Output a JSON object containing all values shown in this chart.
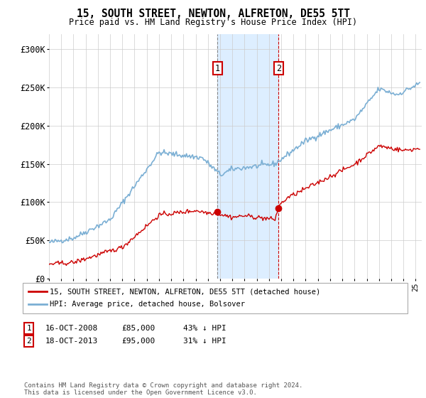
{
  "title": "15, SOUTH STREET, NEWTON, ALFRETON, DE55 5TT",
  "subtitle": "Price paid vs. HM Land Registry's House Price Index (HPI)",
  "ylabel_ticks": [
    "£0",
    "£50K",
    "£100K",
    "£150K",
    "£200K",
    "£250K",
    "£300K"
  ],
  "ytick_values": [
    0,
    50000,
    100000,
    150000,
    200000,
    250000,
    300000
  ],
  "ylim": [
    0,
    320000
  ],
  "xlim_start": 1995.0,
  "xlim_end": 2025.5,
  "hpi_color": "#7bafd4",
  "price_color": "#cc0000",
  "span_color": "#ddeeff",
  "sale1_date": 2008.79,
  "sale1_price": 85000,
  "sale1_label": "1",
  "sale2_date": 2013.79,
  "sale2_price": 95000,
  "sale2_label": "2",
  "legend_line1": "15, SOUTH STREET, NEWTON, ALFRETON, DE55 5TT (detached house)",
  "legend_line2": "HPI: Average price, detached house, Bolsover",
  "table_row1": [
    "1",
    "16-OCT-2008",
    "£85,000",
    "43% ↓ HPI"
  ],
  "table_row2": [
    "2",
    "18-OCT-2013",
    "£95,000",
    "31% ↓ HPI"
  ],
  "footnote": "Contains HM Land Registry data © Crown copyright and database right 2024.\nThis data is licensed under the Open Government Licence v3.0.",
  "background_color": "#ffffff",
  "plot_bg_color": "#ffffff"
}
